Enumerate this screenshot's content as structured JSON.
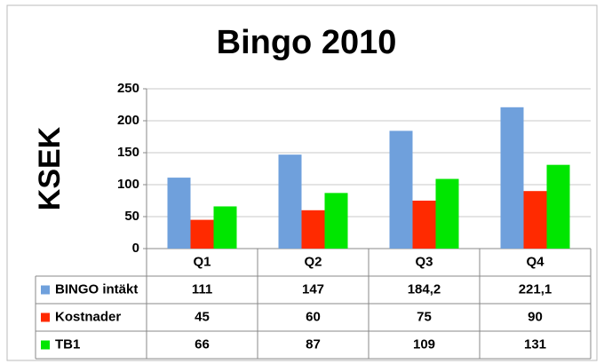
{
  "chart_data": {
    "type": "bar",
    "title": "Bingo 2010",
    "y_label": "KSEK",
    "categories": [
      "Q1",
      "Q2",
      "Q3",
      "Q4"
    ],
    "series": [
      {
        "name": "BINGO intäkt",
        "color": "#6fa0dc",
        "values": [
          111,
          147,
          184.2,
          221.1
        ],
        "value_labels": [
          "111",
          "147",
          "184,2",
          "221,1"
        ]
      },
      {
        "name": "Kostnader",
        "color": "#ff2a00",
        "values": [
          45,
          60,
          75,
          90
        ]
      },
      {
        "name": "TB1",
        "color": "#00e600",
        "values": [
          66,
          87,
          109,
          131
        ]
      }
    ],
    "ylim": [
      0,
      250
    ],
    "yticks": [
      0,
      50,
      100,
      150,
      200,
      250
    ],
    "grid": true,
    "legend": "table"
  }
}
